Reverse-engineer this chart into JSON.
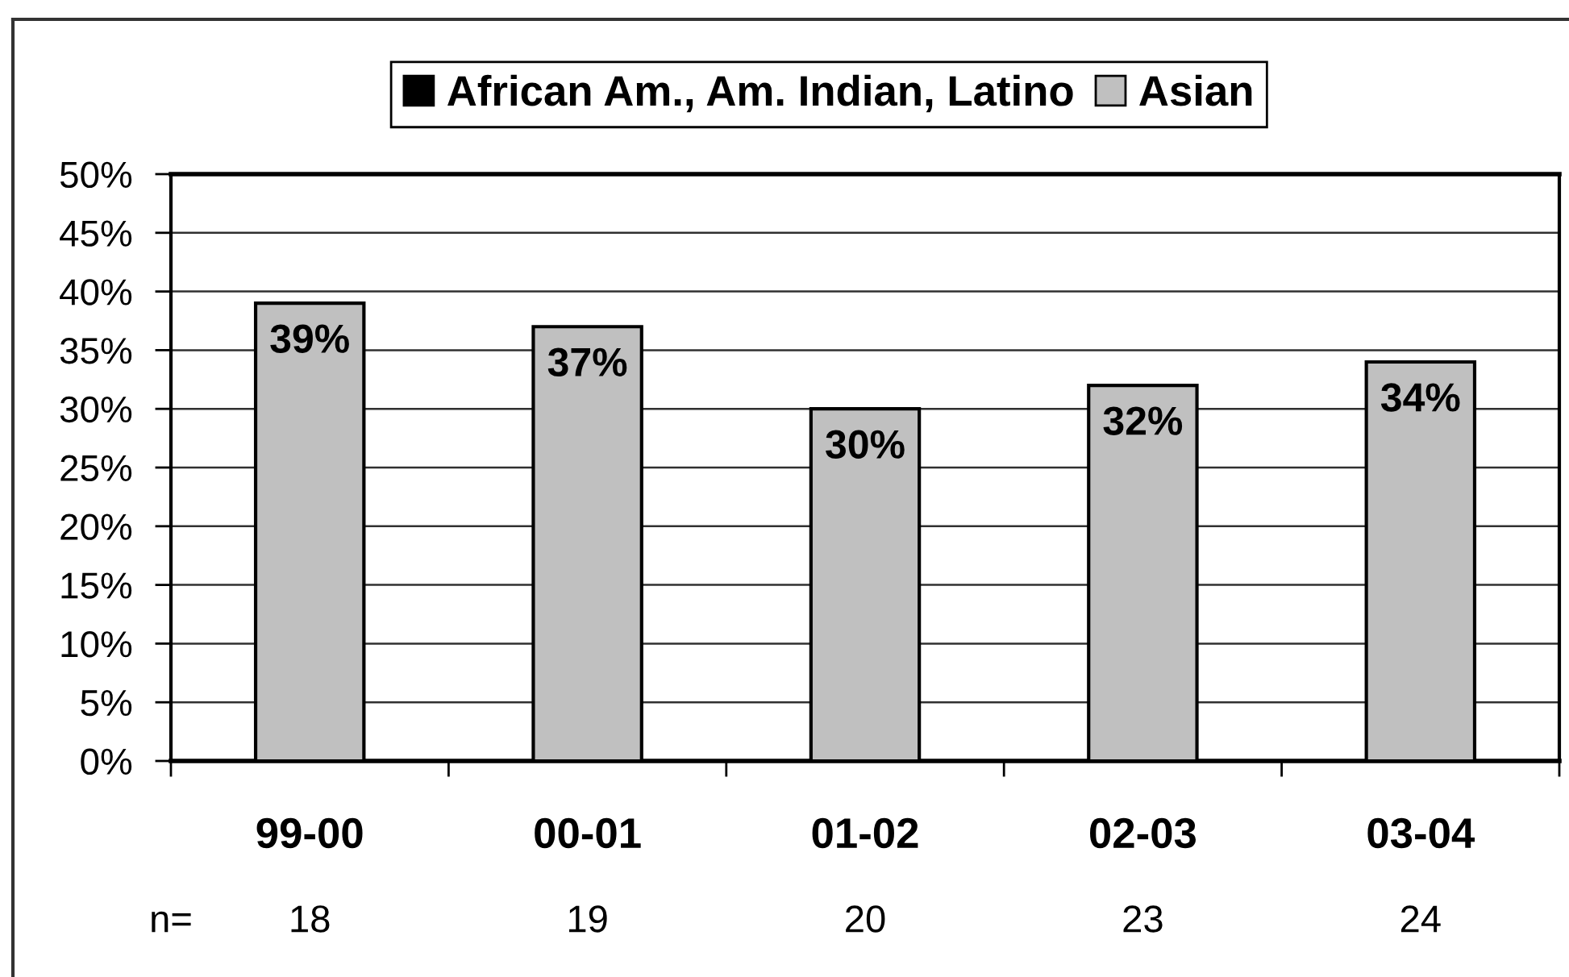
{
  "chart_data": {
    "type": "bar",
    "categories": [
      "99-00",
      "00-01",
      "01-02",
      "02-03",
      "03-04"
    ],
    "series": [
      {
        "name": "African Am., Am. Indian, Latino",
        "color": "#000000",
        "values": [
          null,
          null,
          null,
          null,
          null
        ]
      },
      {
        "name": "Asian",
        "color": "#c0c0c0",
        "values": [
          39,
          37,
          30,
          32,
          34
        ],
        "value_labels": [
          "39%",
          "37%",
          "30%",
          "32%",
          "34%"
        ]
      }
    ],
    "ylim": [
      0,
      50
    ],
    "yticks": [
      {
        "value": 0,
        "label": "0%"
      },
      {
        "value": 5,
        "label": "5%"
      },
      {
        "value": 10,
        "label": "10%"
      },
      {
        "value": 15,
        "label": "15%"
      },
      {
        "value": 20,
        "label": "20%"
      },
      {
        "value": 25,
        "label": "25%"
      },
      {
        "value": 30,
        "label": "30%"
      },
      {
        "value": 35,
        "label": "35%"
      },
      {
        "value": 40,
        "label": "40%"
      },
      {
        "value": 45,
        "label": "45%"
      },
      {
        "value": 50,
        "label": "50%"
      }
    ],
    "grid": "y",
    "legend": "top",
    "annotations": [
      "n=",
      "18",
      "19",
      "20",
      "23",
      "24"
    ]
  }
}
